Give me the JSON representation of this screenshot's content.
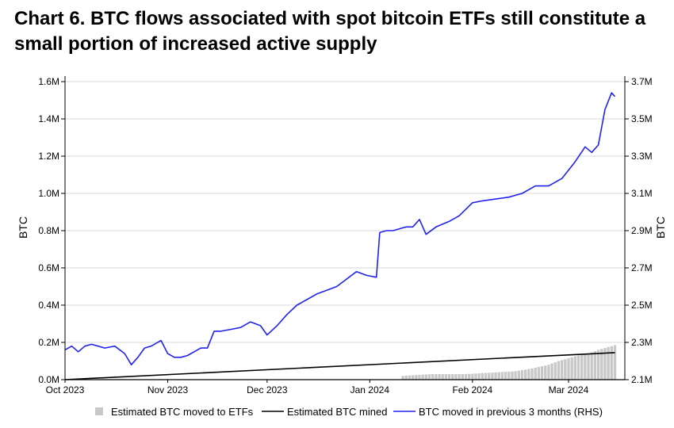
{
  "chart_data": {
    "type": "line",
    "title": "Chart 6. BTC flows associated with spot bitcoin ETFs still constitute a small portion of increased active supply",
    "ylabel_left": "BTC",
    "ylabel_right": "BTC",
    "ylim_left": [
      0,
      1.6
    ],
    "ylim_right": [
      2.1,
      3.7
    ],
    "yticks_left": [
      "0.0M",
      "0.2M",
      "0.4M",
      "0.6M",
      "0.8M",
      "1.0M",
      "1.2M",
      "1.4M",
      "1.6M"
    ],
    "yticks_right": [
      "2.1M",
      "2.3M",
      "2.5M",
      "2.7M",
      "2.9M",
      "3.1M",
      "3.3M",
      "3.5M",
      "3.7M"
    ],
    "xticks": [
      "Oct 2023",
      "Nov 2023",
      "Dec 2023",
      "Jan 2024",
      "Feb 2024",
      "Mar 2024"
    ],
    "grid": "horizontal",
    "legend_position": "bottom",
    "series": [
      {
        "name": "Estimated BTC moved to ETFs",
        "kind": "bar",
        "axis": "left",
        "color": "#c8c8c8",
        "x": [
          "2024-01-11",
          "2024-01-15",
          "2024-01-20",
          "2024-01-25",
          "2024-01-30",
          "2024-02-04",
          "2024-02-09",
          "2024-02-14",
          "2024-02-19",
          "2024-02-24",
          "2024-02-27",
          "2024-03-01",
          "2024-03-04",
          "2024-03-07",
          "2024-03-10",
          "2024-03-13",
          "2024-03-15"
        ],
        "y": [
          0.02,
          0.025,
          0.03,
          0.03,
          0.03,
          0.035,
          0.04,
          0.045,
          0.06,
          0.08,
          0.1,
          0.115,
          0.13,
          0.14,
          0.16,
          0.175,
          0.185
        ]
      },
      {
        "name": "Estimated BTC mined",
        "kind": "line",
        "axis": "left",
        "color": "#000000",
        "x": [
          "2023-10-01",
          "2024-03-15"
        ],
        "y": [
          0.0,
          0.145
        ]
      },
      {
        "name": "BTC moved in previous 3 months (RHS)",
        "kind": "line",
        "axis": "right",
        "color": "#2222ee",
        "x": [
          "2023-10-01",
          "2023-10-03",
          "2023-10-05",
          "2023-10-07",
          "2023-10-09",
          "2023-10-11",
          "2023-10-13",
          "2023-10-16",
          "2023-10-19",
          "2023-10-21",
          "2023-10-23",
          "2023-10-25",
          "2023-10-27",
          "2023-10-30",
          "2023-11-01",
          "2023-11-03",
          "2023-11-05",
          "2023-11-07",
          "2023-11-09",
          "2023-11-11",
          "2023-11-13",
          "2023-11-15",
          "2023-11-17",
          "2023-11-20",
          "2023-11-23",
          "2023-11-26",
          "2023-11-29",
          "2023-12-01",
          "2023-12-04",
          "2023-12-07",
          "2023-12-10",
          "2023-12-13",
          "2023-12-16",
          "2023-12-19",
          "2023-12-22",
          "2023-12-25",
          "2023-12-28",
          "2023-12-31",
          "2024-01-03",
          "2024-01-04",
          "2024-01-06",
          "2024-01-08",
          "2024-01-10",
          "2024-01-12",
          "2024-01-14",
          "2024-01-16",
          "2024-01-18",
          "2024-01-21",
          "2024-01-25",
          "2024-01-28",
          "2024-02-01",
          "2024-02-04",
          "2024-02-08",
          "2024-02-12",
          "2024-02-16",
          "2024-02-20",
          "2024-02-24",
          "2024-02-28",
          "2024-03-03",
          "2024-03-06",
          "2024-03-08",
          "2024-03-10",
          "2024-03-12",
          "2024-03-14",
          "2024-03-15"
        ],
        "y": [
          2.26,
          2.28,
          2.25,
          2.28,
          2.29,
          2.28,
          2.27,
          2.28,
          2.24,
          2.18,
          2.22,
          2.27,
          2.28,
          2.31,
          2.24,
          2.22,
          2.22,
          2.23,
          2.25,
          2.27,
          2.27,
          2.36,
          2.36,
          2.37,
          2.38,
          2.41,
          2.39,
          2.34,
          2.39,
          2.45,
          2.5,
          2.53,
          2.56,
          2.58,
          2.6,
          2.64,
          2.68,
          2.66,
          2.65,
          2.89,
          2.9,
          2.9,
          2.91,
          2.92,
          2.92,
          2.96,
          2.88,
          2.92,
          2.95,
          2.98,
          3.05,
          3.06,
          3.07,
          3.08,
          3.1,
          3.14,
          3.14,
          3.18,
          3.27,
          3.35,
          3.32,
          3.36,
          3.55,
          3.64,
          3.62
        ]
      }
    ]
  }
}
